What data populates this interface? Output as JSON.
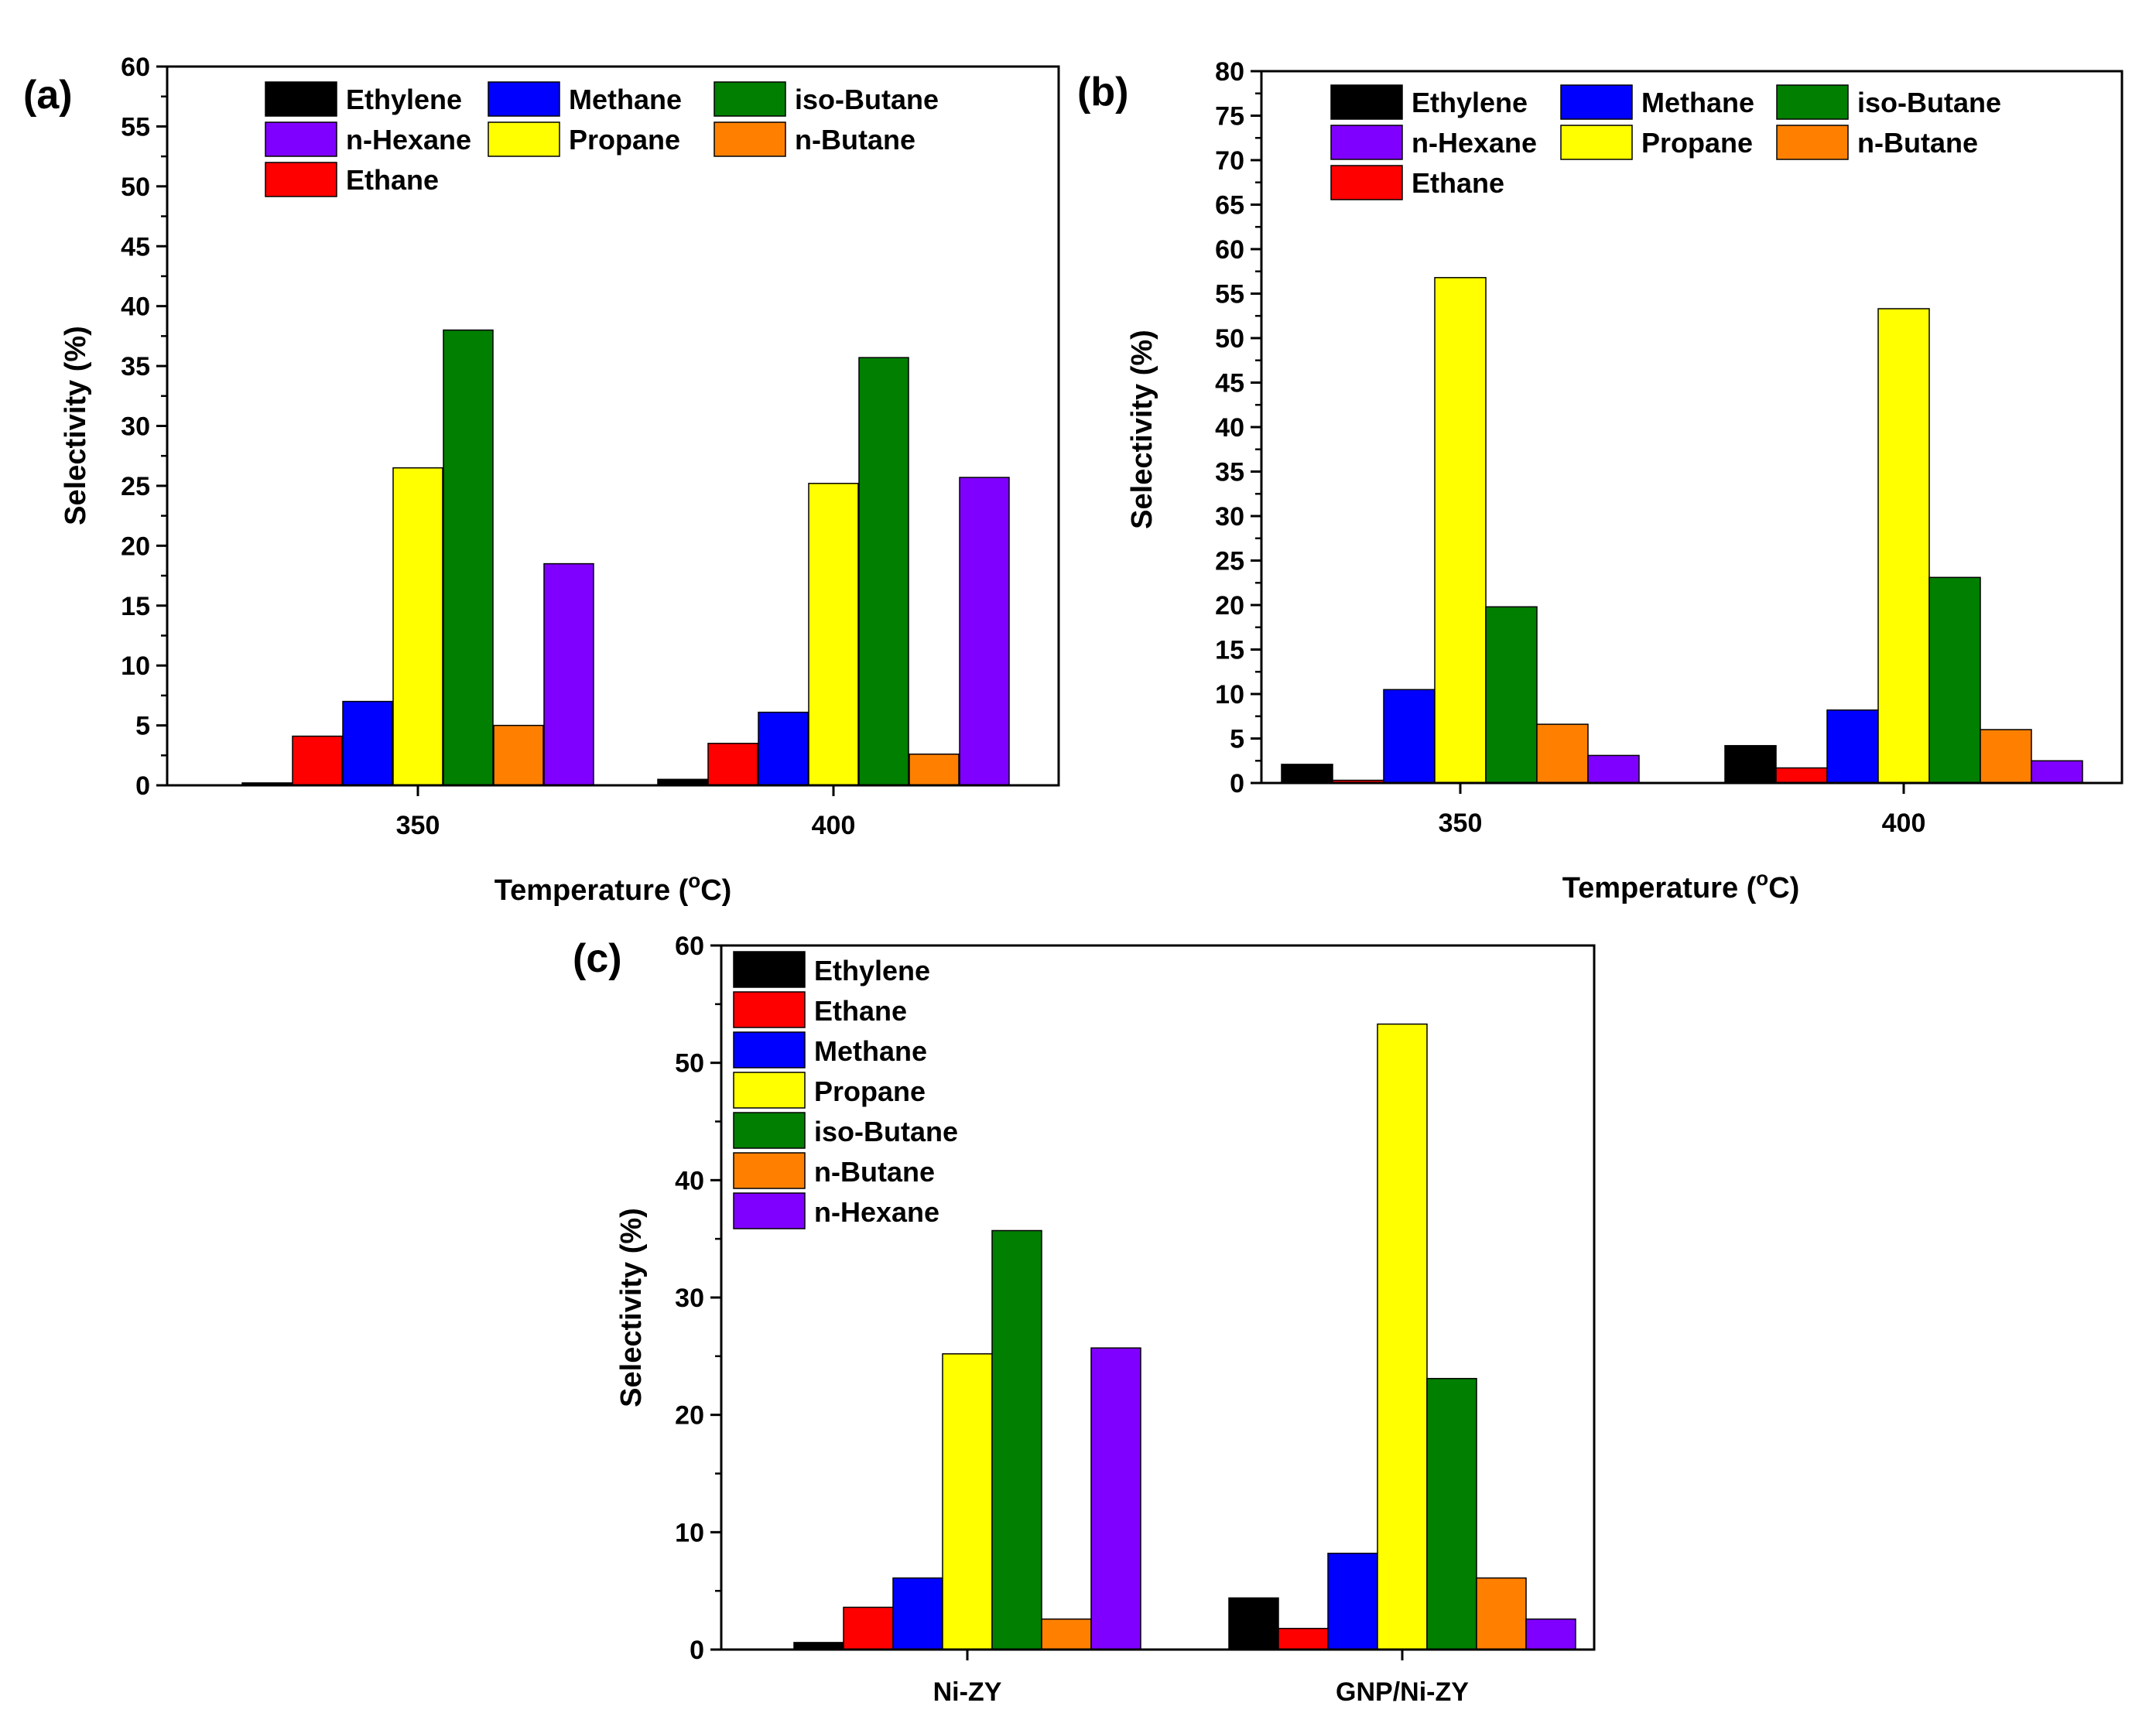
{
  "chart_data": [
    {
      "panel": "(a)",
      "type": "bar",
      "xlabel": "Temperature (",
      "xlabel_sup": "o",
      "xlabel_suffix": "C)",
      "ylabel": "Selectivity (%)",
      "ylim": [
        0,
        60
      ],
      "ytick_step": 5,
      "yminor": false,
      "categories": [
        "350",
        "400"
      ],
      "series": [
        {
          "name": "Ethylene",
          "color": "#000000",
          "values": [
            0.2,
            0.5
          ]
        },
        {
          "name": "Ethane",
          "color": "#ff0000",
          "values": [
            4.1,
            3.5
          ]
        },
        {
          "name": "Methane",
          "color": "#0000ff",
          "values": [
            7.0,
            6.1
          ]
        },
        {
          "name": "Propane",
          "color": "#ffff00",
          "values": [
            26.5,
            25.2
          ]
        },
        {
          "name": "iso-Butane",
          "color": "#007f00",
          "values": [
            38.0,
            35.7
          ]
        },
        {
          "name": "n-Butane",
          "color": "#ff8000",
          "values": [
            5.0,
            2.6
          ]
        },
        {
          "name": "n-Hexane",
          "color": "#8000ff",
          "values": [
            18.5,
            25.7
          ]
        }
      ],
      "legend": {
        "rows": [
          [
            "Ethylene",
            "Methane",
            "iso-Butane"
          ],
          [
            "n-Hexane",
            "Propane",
            "n-Butane"
          ],
          [
            "Ethane"
          ]
        ]
      }
    },
    {
      "panel": "(b)",
      "type": "bar",
      "xlabel": "Temperature (",
      "xlabel_sup": "o",
      "xlabel_suffix": "C)",
      "ylabel": "Selectivity (%)",
      "ylim": [
        0,
        80
      ],
      "ytick_step": 5,
      "yminor": false,
      "categories": [
        "350",
        "400"
      ],
      "series": [
        {
          "name": "Ethylene",
          "color": "#000000",
          "values": [
            2.1,
            4.2
          ]
        },
        {
          "name": "Ethane",
          "color": "#ff0000",
          "values": [
            0.3,
            1.7
          ]
        },
        {
          "name": "Methane",
          "color": "#0000ff",
          "values": [
            10.5,
            8.2
          ]
        },
        {
          "name": "Propane",
          "color": "#ffff00",
          "values": [
            56.8,
            53.3
          ]
        },
        {
          "name": "iso-Butane",
          "color": "#007f00",
          "values": [
            19.8,
            23.1
          ]
        },
        {
          "name": "n-Butane",
          "color": "#ff8000",
          "values": [
            6.6,
            6.0
          ]
        },
        {
          "name": "n-Hexane",
          "color": "#8000ff",
          "values": [
            3.1,
            2.5
          ]
        }
      ],
      "legend": {
        "rows": [
          [
            "Ethylene",
            "Methane",
            "iso-Butane"
          ],
          [
            "n-Hexane",
            "Propane",
            "n-Butane"
          ],
          [
            "Ethane"
          ]
        ]
      }
    },
    {
      "panel": "(c)",
      "type": "bar",
      "xlabel": "",
      "ylabel": "Selectivity (%)",
      "ylim": [
        0,
        60
      ],
      "ytick_step": 10,
      "yminor": true,
      "categories": [
        "Ni-ZY",
        "GNP/Ni-ZY"
      ],
      "series": [
        {
          "name": "Ethylene",
          "color": "#000000",
          "values": [
            0.6,
            4.4
          ]
        },
        {
          "name": "Ethane",
          "color": "#ff0000",
          "values": [
            3.6,
            1.8
          ]
        },
        {
          "name": "Methane",
          "color": "#0000ff",
          "values": [
            6.1,
            8.2
          ]
        },
        {
          "name": "Propane",
          "color": "#ffff00",
          "values": [
            25.2,
            53.3
          ]
        },
        {
          "name": "iso-Butane",
          "color": "#007f00",
          "values": [
            35.7,
            23.1
          ]
        },
        {
          "name": "n-Butane",
          "color": "#ff8000",
          "values": [
            2.6,
            6.1
          ]
        },
        {
          "name": "n-Hexane",
          "color": "#8000ff",
          "values": [
            25.7,
            2.6
          ]
        }
      ],
      "legend": {
        "rows": [
          [
            "Ethylene"
          ],
          [
            "Ethane"
          ],
          [
            "Methane"
          ],
          [
            "Propane"
          ],
          [
            "iso-Butane"
          ],
          [
            "n-Butane"
          ],
          [
            "n-Hexane"
          ]
        ]
      }
    }
  ]
}
